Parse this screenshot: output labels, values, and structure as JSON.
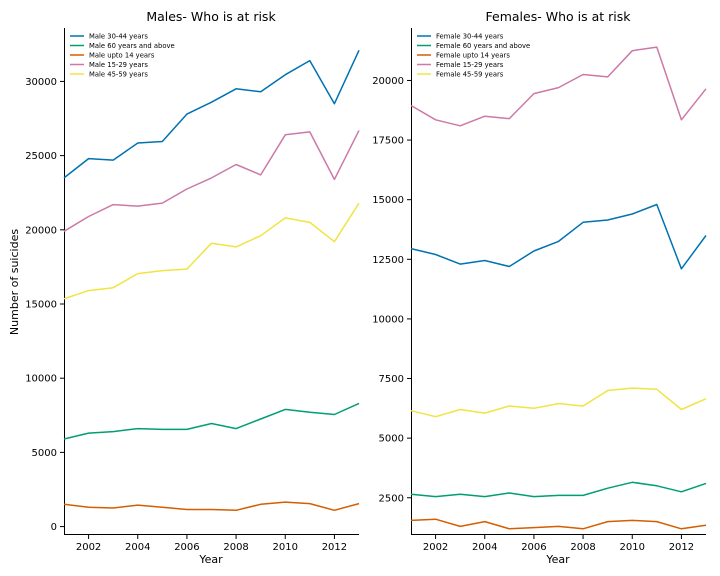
{
  "figure": {
    "ylabel": "Number of suicides"
  },
  "chart_data": [
    {
      "type": "line",
      "title": "Males- Who is at risk",
      "xlabel": "Year",
      "ylabel": "Number of suicides",
      "xlim": [
        2001,
        2013
      ],
      "ylim": [
        -500,
        33600
      ],
      "x_ticks": [
        2002,
        2004,
        2006,
        2008,
        2010,
        2012
      ],
      "y_ticks": [
        0,
        5000,
        10000,
        15000,
        20000,
        25000,
        30000
      ],
      "x": [
        2001,
        2002,
        2003,
        2004,
        2005,
        2006,
        2007,
        2008,
        2009,
        2010,
        2011,
        2012,
        2013
      ],
      "legend_position": "top-left",
      "series": [
        {
          "name": "Male 30-44 years",
          "color": "#0072b2",
          "values": [
            23500,
            24800,
            24700,
            25850,
            25950,
            27800,
            28600,
            29500,
            29300,
            30450,
            31400,
            28500,
            32100
          ]
        },
        {
          "name": "Male 60 years and above",
          "color": "#009e73",
          "values": [
            5900,
            6300,
            6400,
            6600,
            6550,
            6550,
            6950,
            6600,
            7250,
            7900,
            7700,
            7550,
            8300
          ]
        },
        {
          "name": "Male upto 14 years",
          "color": "#d55e00",
          "values": [
            1500,
            1300,
            1250,
            1450,
            1300,
            1150,
            1150,
            1100,
            1500,
            1650,
            1550,
            1100,
            1550
          ]
        },
        {
          "name": "Male 15-29 years",
          "color": "#cc79a7",
          "values": [
            19900,
            20900,
            21700,
            21600,
            21800,
            22750,
            23500,
            24400,
            23700,
            26400,
            26600,
            23400,
            26700
          ]
        },
        {
          "name": "Male 45-59 years",
          "color": "#f0e442",
          "values": [
            15350,
            15900,
            16100,
            17050,
            17250,
            17350,
            19100,
            18850,
            19600,
            20800,
            20500,
            19200,
            21800
          ]
        }
      ]
    },
    {
      "type": "line",
      "title": "Females- Who is at risk",
      "xlabel": "Year",
      "ylabel": "",
      "xlim": [
        2001,
        2013
      ],
      "ylim": [
        980,
        22200
      ],
      "x_ticks": [
        2002,
        2004,
        2006,
        2008,
        2010,
        2012
      ],
      "y_ticks": [
        2500,
        5000,
        7500,
        10000,
        12500,
        15000,
        17500,
        20000
      ],
      "x": [
        2001,
        2002,
        2003,
        2004,
        2005,
        2006,
        2007,
        2008,
        2009,
        2010,
        2011,
        2012,
        2013
      ],
      "legend_position": "top-left",
      "series": [
        {
          "name": "Female 30-44 years",
          "color": "#0072b2",
          "values": [
            12950,
            12700,
            12300,
            12450,
            12200,
            12850,
            13250,
            14050,
            14150,
            14400,
            14800,
            12100,
            13500
          ]
        },
        {
          "name": "Female 60 years and above",
          "color": "#009e73",
          "values": [
            2650,
            2550,
            2650,
            2550,
            2700,
            2550,
            2600,
            2600,
            2900,
            3150,
            3000,
            2750,
            3100
          ]
        },
        {
          "name": "Female upto 14 years",
          "color": "#d55e00",
          "values": [
            1550,
            1600,
            1300,
            1500,
            1200,
            1250,
            1300,
            1200,
            1500,
            1550,
            1500,
            1200,
            1350
          ]
        },
        {
          "name": "Female 15-29 years",
          "color": "#cc79a7",
          "values": [
            18950,
            18350,
            18100,
            18500,
            18400,
            19450,
            19700,
            20250,
            20150,
            21250,
            21400,
            18350,
            19650
          ]
        },
        {
          "name": "Female 45-59 years",
          "color": "#f0e442",
          "values": [
            6150,
            5900,
            6200,
            6050,
            6350,
            6250,
            6450,
            6350,
            7000,
            7100,
            7050,
            6200,
            6650
          ]
        }
      ]
    }
  ]
}
